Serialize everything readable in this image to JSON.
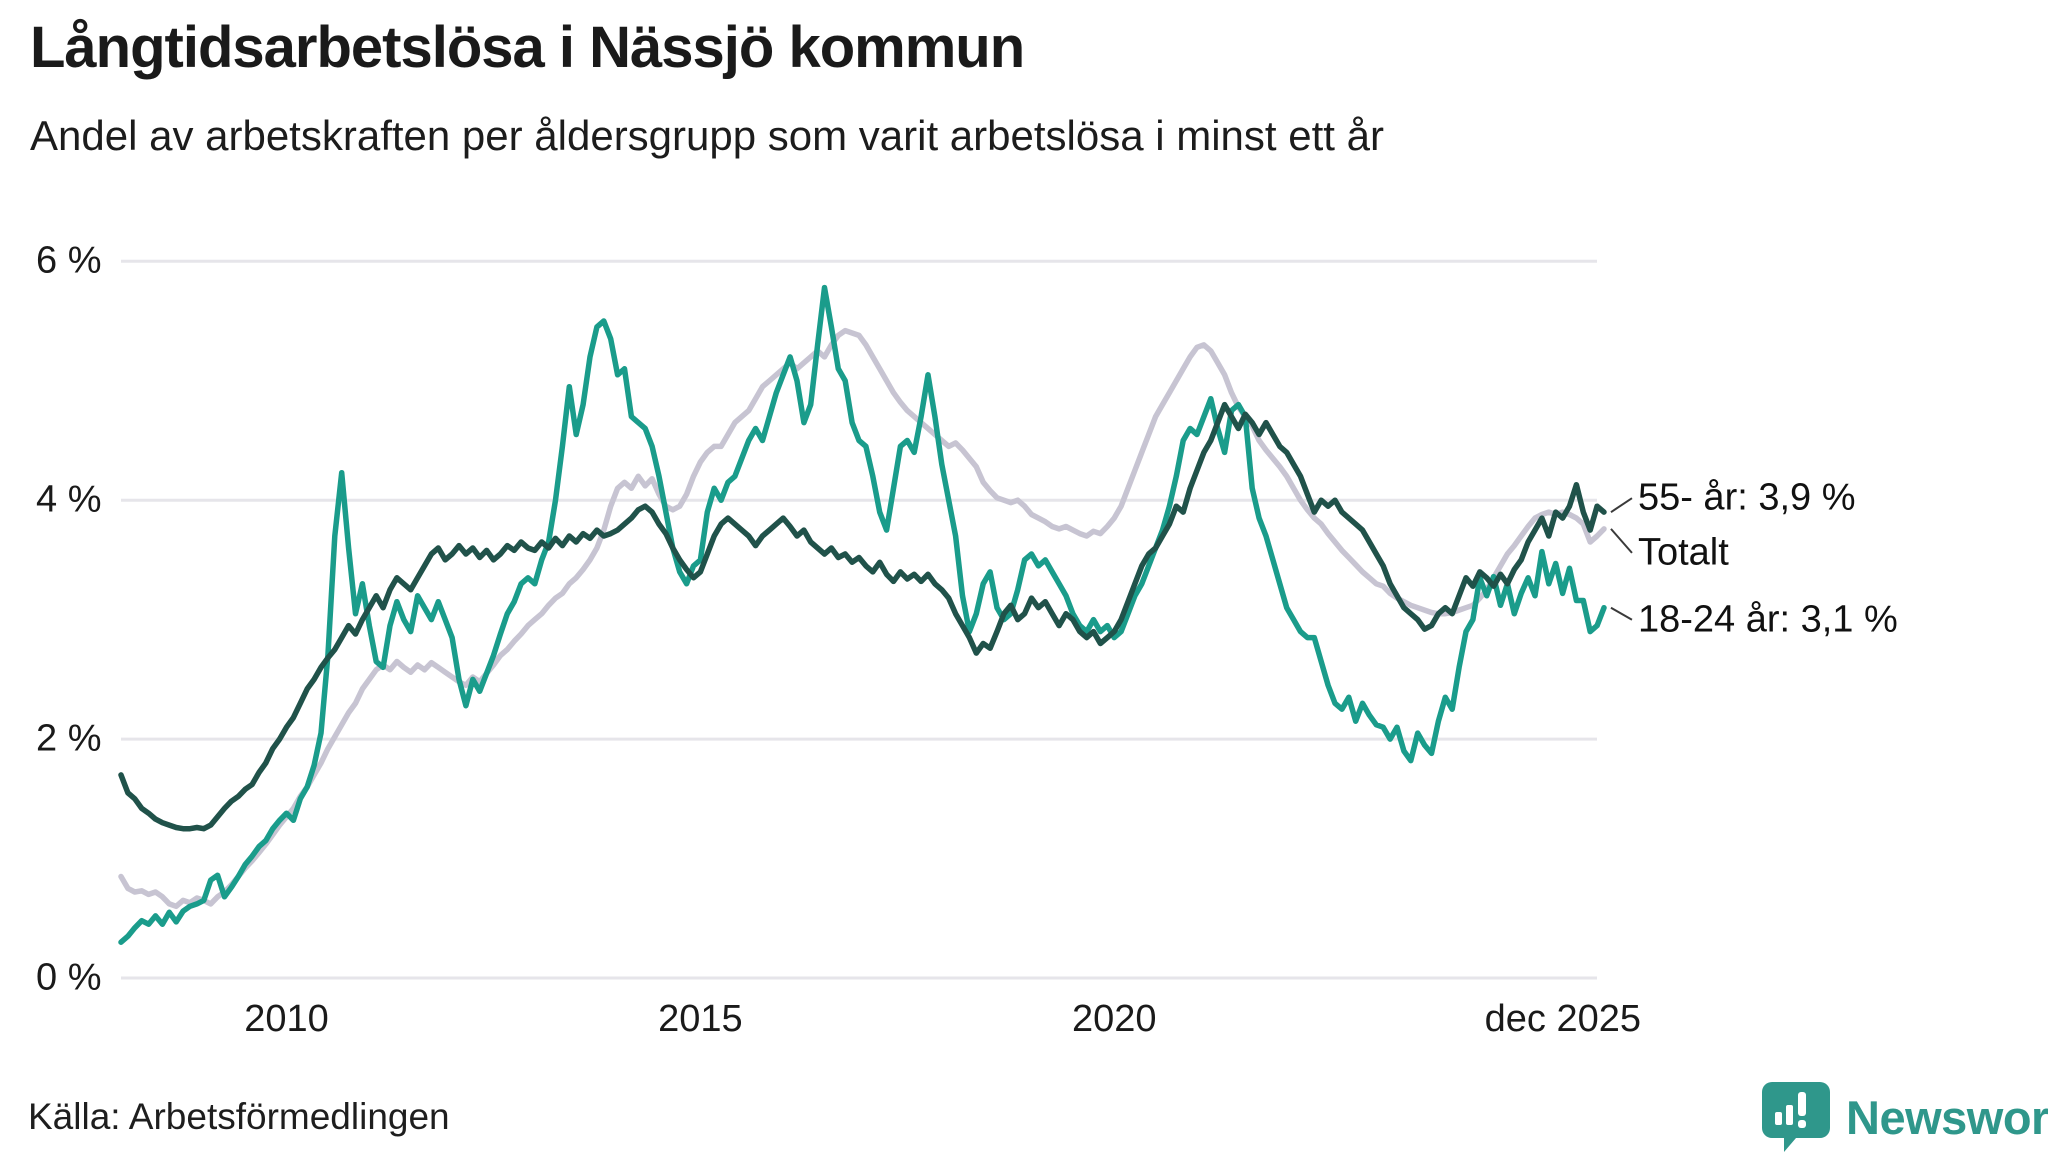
{
  "header": {
    "title": "Långtidsarbetslösa i Nässjö kommun",
    "subtitle": "Andel av arbetskraften per åldersgrupp som varit arbetslösa i minst ett år"
  },
  "source": {
    "label": "Källa: Arbetsförmedlingen"
  },
  "branding": {
    "name": "Newsworthy",
    "icon": "bar-chart-speech-bubble-icon",
    "color": "#2f978b"
  },
  "chart_data": {
    "type": "line",
    "title": "Långtidsarbetslösa i Nässjö kommun",
    "subtitle": "Andel av arbetskraften per åldersgrupp som varit arbetslösa i minst ett år",
    "x_start_year": 2008,
    "points_per_year": 12,
    "x_end_label_year": 2025.92,
    "ylim": [
      0,
      6
    ],
    "grid": true,
    "colors": {
      "grid": "#e6e5ea",
      "connector": "#3a3a3a"
    },
    "y_ticks": [
      {
        "label": "6 %",
        "value": 6
      },
      {
        "label": "4 %",
        "value": 4
      },
      {
        "label": "2 %",
        "value": 2
      },
      {
        "label": "0 %",
        "value": 0
      }
    ],
    "x_ticks": [
      {
        "label": "2010",
        "year": 2010
      },
      {
        "label": "2015",
        "year": 2015
      },
      {
        "label": "2020",
        "year": 2020
      },
      {
        "label": "dec 2025",
        "year": 2025.42
      }
    ],
    "legend_position": "end-of-line-labels",
    "series": [
      {
        "name": "Totalt",
        "end_label": "Totalt",
        "color": "#c7c4d2",
        "label_offset": 24,
        "values": [
          0.85,
          0.75,
          0.72,
          0.73,
          0.7,
          0.72,
          0.68,
          0.62,
          0.6,
          0.65,
          0.63,
          0.67,
          0.65,
          0.62,
          0.68,
          0.72,
          0.78,
          0.85,
          0.92,
          0.98,
          1.05,
          1.12,
          1.2,
          1.28,
          1.35,
          1.42,
          1.52,
          1.6,
          1.7,
          1.8,
          1.92,
          2.02,
          2.12,
          2.22,
          2.3,
          2.42,
          2.5,
          2.58,
          2.62,
          2.58,
          2.65,
          2.6,
          2.56,
          2.62,
          2.58,
          2.64,
          2.6,
          2.56,
          2.52,
          2.48,
          2.45,
          2.52,
          2.48,
          2.55,
          2.62,
          2.7,
          2.75,
          2.82,
          2.88,
          2.95,
          3.0,
          3.05,
          3.12,
          3.18,
          3.22,
          3.3,
          3.35,
          3.42,
          3.5,
          3.6,
          3.75,
          3.95,
          4.1,
          4.15,
          4.1,
          4.2,
          4.12,
          4.18,
          4.05,
          3.95,
          3.92,
          3.95,
          4.05,
          4.2,
          4.32,
          4.4,
          4.45,
          4.45,
          4.55,
          4.65,
          4.7,
          4.75,
          4.85,
          4.95,
          5.0,
          5.05,
          5.1,
          5.15,
          5.1,
          5.15,
          5.2,
          5.25,
          5.2,
          5.3,
          5.38,
          5.42,
          5.4,
          5.38,
          5.3,
          5.2,
          5.1,
          5.0,
          4.9,
          4.82,
          4.75,
          4.7,
          4.65,
          4.6,
          4.55,
          4.5,
          4.45,
          4.48,
          4.42,
          4.35,
          4.28,
          4.15,
          4.08,
          4.02,
          4.0,
          3.98,
          4.0,
          3.95,
          3.88,
          3.85,
          3.82,
          3.78,
          3.76,
          3.78,
          3.75,
          3.72,
          3.7,
          3.74,
          3.72,
          3.78,
          3.85,
          3.95,
          4.1,
          4.25,
          4.4,
          4.55,
          4.7,
          4.8,
          4.9,
          5.0,
          5.1,
          5.2,
          5.28,
          5.3,
          5.25,
          5.15,
          5.05,
          4.9,
          4.78,
          4.7,
          4.62,
          4.5,
          4.42,
          4.35,
          4.28,
          4.2,
          4.1,
          4.0,
          3.92,
          3.85,
          3.8,
          3.72,
          3.65,
          3.58,
          3.52,
          3.46,
          3.4,
          3.35,
          3.3,
          3.28,
          3.22,
          3.18,
          3.15,
          3.12,
          3.1,
          3.08,
          3.06,
          3.05,
          3.05,
          3.06,
          3.08,
          3.1,
          3.12,
          3.18,
          3.25,
          3.35,
          3.45,
          3.55,
          3.62,
          3.7,
          3.78,
          3.85,
          3.88,
          3.9,
          3.88,
          3.9,
          3.88,
          3.85,
          3.8,
          3.65,
          3.7,
          3.76
        ]
      },
      {
        "name": "18-24 år",
        "end_label": "18-24 år: 3,1 %",
        "color": "#1a9c8b",
        "label_offset": 12,
        "values": [
          0.3,
          0.35,
          0.42,
          0.48,
          0.45,
          0.52,
          0.45,
          0.55,
          0.47,
          0.56,
          0.6,
          0.62,
          0.65,
          0.82,
          0.86,
          0.68,
          0.76,
          0.85,
          0.95,
          1.02,
          1.1,
          1.15,
          1.25,
          1.32,
          1.38,
          1.32,
          1.5,
          1.6,
          1.78,
          2.05,
          2.7,
          3.7,
          4.23,
          3.6,
          3.05,
          3.3,
          2.95,
          2.65,
          2.6,
          2.95,
          3.15,
          3.0,
          2.9,
          3.2,
          3.1,
          3.0,
          3.15,
          3.0,
          2.85,
          2.5,
          2.28,
          2.5,
          2.4,
          2.55,
          2.7,
          2.88,
          3.05,
          3.15,
          3.3,
          3.35,
          3.3,
          3.5,
          3.65,
          4.0,
          4.45,
          4.95,
          4.55,
          4.8,
          5.2,
          5.45,
          5.5,
          5.35,
          5.05,
          5.1,
          4.7,
          4.65,
          4.6,
          4.45,
          4.2,
          3.9,
          3.6,
          3.4,
          3.3,
          3.45,
          3.5,
          3.9,
          4.1,
          4.0,
          4.15,
          4.2,
          4.35,
          4.5,
          4.6,
          4.5,
          4.7,
          4.9,
          5.05,
          5.2,
          5.0,
          4.65,
          4.8,
          5.3,
          5.78,
          5.45,
          5.1,
          5.0,
          4.65,
          4.5,
          4.45,
          4.2,
          3.9,
          3.75,
          4.1,
          4.45,
          4.5,
          4.4,
          4.7,
          5.05,
          4.7,
          4.3,
          4.0,
          3.7,
          3.2,
          2.9,
          3.05,
          3.3,
          3.4,
          3.1,
          3.0,
          3.05,
          3.25,
          3.5,
          3.55,
          3.45,
          3.5,
          3.4,
          3.3,
          3.2,
          3.05,
          2.95,
          2.9,
          3.0,
          2.9,
          2.95,
          2.85,
          2.9,
          3.05,
          3.2,
          3.3,
          3.45,
          3.6,
          3.75,
          3.95,
          4.2,
          4.5,
          4.6,
          4.55,
          4.7,
          4.85,
          4.6,
          4.4,
          4.75,
          4.8,
          4.7,
          4.1,
          3.85,
          3.7,
          3.5,
          3.3,
          3.1,
          3.0,
          2.9,
          2.85,
          2.85,
          2.65,
          2.45,
          2.3,
          2.25,
          2.35,
          2.15,
          2.3,
          2.2,
          2.12,
          2.1,
          2.0,
          2.1,
          1.9,
          1.82,
          2.05,
          1.95,
          1.88,
          2.15,
          2.35,
          2.25,
          2.6,
          2.9,
          3.0,
          3.35,
          3.2,
          3.36,
          3.12,
          3.3,
          3.05,
          3.22,
          3.35,
          3.2,
          3.57,
          3.3,
          3.47,
          3.22,
          3.43,
          3.16,
          3.16,
          2.9,
          2.95,
          3.1
        ]
      },
      {
        "name": "55- år",
        "end_label": "55- år: 3,9 %",
        "color": "#20524a",
        "label_offset": -14,
        "values": [
          1.7,
          1.55,
          1.5,
          1.42,
          1.38,
          1.33,
          1.3,
          1.28,
          1.26,
          1.25,
          1.25,
          1.26,
          1.25,
          1.28,
          1.35,
          1.42,
          1.48,
          1.52,
          1.58,
          1.62,
          1.72,
          1.8,
          1.92,
          2.0,
          2.1,
          2.18,
          2.3,
          2.42,
          2.5,
          2.6,
          2.68,
          2.75,
          2.85,
          2.95,
          2.88,
          3.0,
          3.1,
          3.2,
          3.1,
          3.25,
          3.35,
          3.3,
          3.25,
          3.35,
          3.45,
          3.55,
          3.6,
          3.5,
          3.55,
          3.62,
          3.55,
          3.6,
          3.52,
          3.58,
          3.5,
          3.55,
          3.62,
          3.58,
          3.65,
          3.6,
          3.58,
          3.65,
          3.6,
          3.68,
          3.62,
          3.7,
          3.65,
          3.72,
          3.68,
          3.75,
          3.7,
          3.72,
          3.75,
          3.8,
          3.85,
          3.92,
          3.95,
          3.9,
          3.8,
          3.72,
          3.6,
          3.5,
          3.42,
          3.35,
          3.4,
          3.55,
          3.7,
          3.8,
          3.85,
          3.8,
          3.75,
          3.7,
          3.62,
          3.7,
          3.75,
          3.8,
          3.85,
          3.78,
          3.7,
          3.75,
          3.65,
          3.6,
          3.55,
          3.6,
          3.52,
          3.55,
          3.48,
          3.52,
          3.45,
          3.4,
          3.48,
          3.38,
          3.32,
          3.4,
          3.34,
          3.38,
          3.32,
          3.38,
          3.3,
          3.25,
          3.18,
          3.05,
          2.95,
          2.85,
          2.72,
          2.8,
          2.76,
          2.9,
          3.05,
          3.12,
          3.0,
          3.05,
          3.18,
          3.1,
          3.15,
          3.05,
          2.95,
          3.05,
          3.0,
          2.9,
          2.85,
          2.9,
          2.8,
          2.85,
          2.9,
          3.0,
          3.15,
          3.3,
          3.45,
          3.55,
          3.6,
          3.7,
          3.8,
          3.95,
          3.9,
          4.1,
          4.25,
          4.4,
          4.5,
          4.65,
          4.8,
          4.7,
          4.6,
          4.72,
          4.65,
          4.55,
          4.65,
          4.55,
          4.45,
          4.4,
          4.3,
          4.2,
          4.05,
          3.9,
          4.0,
          3.95,
          4.0,
          3.9,
          3.85,
          3.8,
          3.75,
          3.65,
          3.55,
          3.45,
          3.3,
          3.2,
          3.1,
          3.05,
          3.0,
          2.92,
          2.95,
          3.05,
          3.1,
          3.05,
          3.2,
          3.35,
          3.28,
          3.4,
          3.35,
          3.28,
          3.38,
          3.3,
          3.42,
          3.5,
          3.65,
          3.75,
          3.85,
          3.7,
          3.9,
          3.85,
          3.95,
          4.13,
          3.9,
          3.75,
          3.95,
          3.9
        ]
      }
    ]
  }
}
